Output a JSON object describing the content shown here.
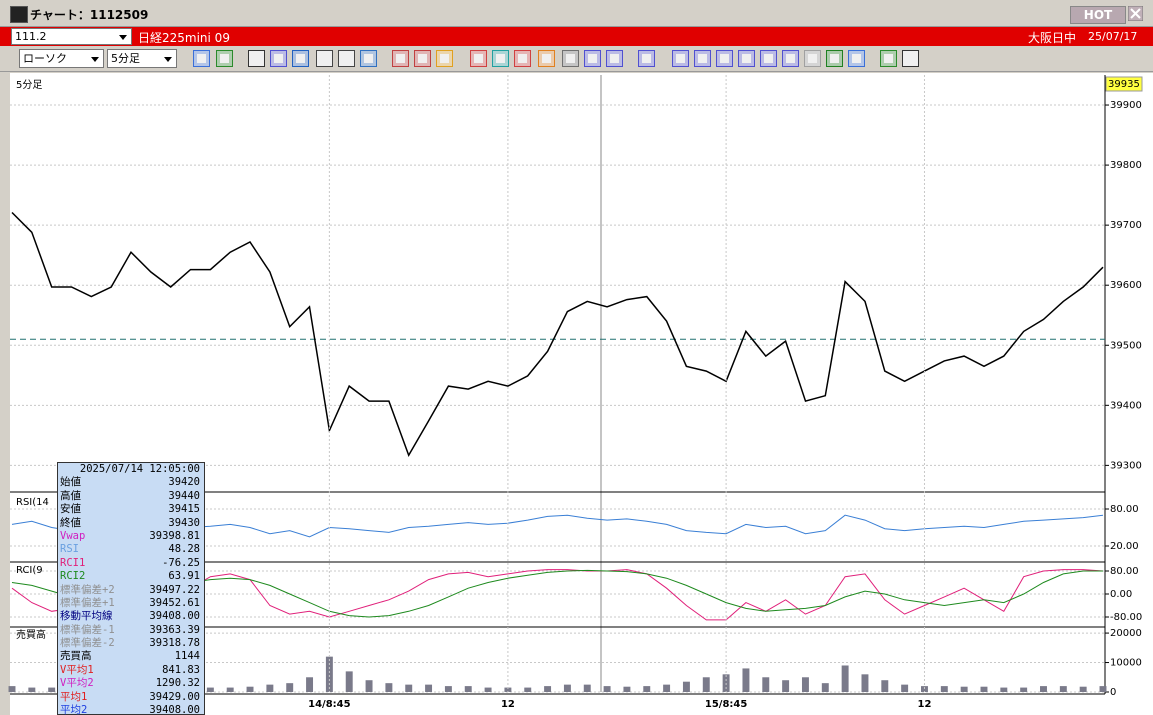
{
  "window": {
    "title": "チャート：1112509",
    "hot": "HOT"
  },
  "header": {
    "code": "111.2",
    "name": "日経225mini 09",
    "market": "大阪日中",
    "date": "25/07/17"
  },
  "toolbar": {
    "chart_type": "ローソク",
    "interval": "5分足"
  },
  "chart_data": [
    {
      "type": "line",
      "title": "5分足",
      "series": [
        {
          "color": "#000000",
          "values": [
            39721,
            39688,
            39597,
            39597,
            39581,
            39597,
            39655,
            39622,
            39597,
            39626,
            39626,
            39655,
            39672,
            39622,
            39531,
            39564,
            39358,
            39432,
            39407,
            39407,
            39317,
            39374,
            39432,
            39427,
            39440,
            39432,
            39449,
            39490,
            39556,
            39573,
            39564,
            39576,
            39581,
            39540,
            39465,
            39457,
            39440,
            39523,
            39482,
            39507,
            39407,
            39416,
            39606,
            39573,
            39457,
            39440,
            39457,
            39474,
            39482,
            39465,
            39482,
            39523,
            39543,
            39573,
            39597,
            39630
          ]
        }
      ],
      "last_price": 39935,
      "reference_line": 39510,
      "ylim": [
        39259,
        39945
      ],
      "yticks": [
        39300,
        39400,
        39500,
        39600,
        39700,
        39800,
        39900
      ]
    },
    {
      "type": "line",
      "title": "RSI(14",
      "series": [
        {
          "color": "#3a7fd5",
          "values": [
            55,
            60,
            50,
            45,
            48,
            52,
            55,
            45,
            48,
            50,
            52,
            55,
            50,
            40,
            45,
            35,
            50,
            48,
            45,
            42,
            50,
            52,
            55,
            58,
            55,
            57,
            62,
            68,
            70,
            65,
            62,
            64,
            60,
            55,
            45,
            42,
            40,
            55,
            50,
            52,
            40,
            45,
            70,
            62,
            48,
            45,
            48,
            50,
            52,
            50,
            55,
            60,
            62,
            64,
            66,
            70
          ]
        }
      ],
      "ylim": [
        -2.7,
        102.7
      ],
      "yticks": [
        {
          "value": 20,
          "label": "20.00"
        },
        {
          "value": 80,
          "label": "80.00"
        }
      ]
    },
    {
      "type": "line",
      "title": "RCI(9",
      "series": [
        {
          "color": "#e0207a",
          "values": [
            20,
            -30,
            -60,
            -50,
            -20,
            30,
            60,
            70,
            40,
            20,
            60,
            70,
            50,
            -40,
            -70,
            -60,
            -80,
            -60,
            -40,
            -20,
            10,
            50,
            70,
            75,
            60,
            70,
            80,
            85,
            85,
            80,
            80,
            85,
            70,
            20,
            -40,
            -90,
            -90,
            -30,
            -60,
            -20,
            -70,
            -40,
            60,
            70,
            -20,
            -70,
            -40,
            -10,
            20,
            -20,
            -60,
            60,
            80,
            85,
            85,
            80
          ]
        },
        {
          "color": "#1e8a1e",
          "values": [
            40,
            30,
            10,
            -10,
            -20,
            -10,
            10,
            30,
            40,
            40,
            50,
            55,
            50,
            30,
            0,
            -30,
            -60,
            -75,
            -80,
            -75,
            -60,
            -40,
            -10,
            20,
            40,
            55,
            65,
            75,
            80,
            82,
            80,
            78,
            70,
            55,
            30,
            0,
            -30,
            -50,
            -60,
            -55,
            -50,
            -40,
            -10,
            10,
            0,
            -20,
            -30,
            -40,
            -30,
            -20,
            -30,
            0,
            40,
            70,
            80,
            80
          ]
        }
      ],
      "ylim": [
        -107.8,
        107.8
      ],
      "yticks": [
        {
          "value": -80,
          "label": "-80.00"
        },
        {
          "value": 0,
          "label": "0.00"
        },
        {
          "value": 80,
          "label": "80.00"
        }
      ]
    },
    {
      "type": "bar",
      "title": "売買高",
      "color": "#7a7a8a",
      "values": [
        2000,
        1500,
        1500,
        1200,
        1200,
        1500,
        1800,
        1500,
        1200,
        1200,
        1500,
        1500,
        1800,
        2500,
        3000,
        5000,
        12000,
        7000,
        4000,
        3000,
        2500,
        2500,
        2000,
        2000,
        1500,
        1500,
        1500,
        2000,
        2500,
        2500,
        2000,
        1800,
        2000,
        2500,
        3500,
        5000,
        6000,
        8000,
        5000,
        4000,
        5000,
        3000,
        9000,
        6000,
        4000,
        2500,
        2000,
        2000,
        1800,
        1800,
        1500,
        1500,
        2000,
        2000,
        1800,
        2000
      ],
      "categories": [
        null,
        null,
        null,
        null,
        null,
        null,
        null,
        null,
        null,
        null,
        null,
        null,
        null,
        null,
        null,
        null,
        "14/8:45",
        null,
        null,
        null,
        null,
        null,
        null,
        null,
        null,
        "12",
        null,
        null,
        null,
        null,
        null,
        null,
        null,
        null,
        null,
        null,
        "15/8:45",
        null,
        null,
        null,
        null,
        null,
        null,
        null,
        null,
        null,
        "12",
        null,
        null,
        null,
        null,
        null,
        null,
        null,
        null,
        null
      ],
      "ylim": [
        0,
        21724
      ],
      "yticks": [
        0,
        10000,
        20000
      ]
    }
  ],
  "info_box": {
    "datetime": "2025/07/14 12:05:00",
    "rows": [
      {
        "label": "始値",
        "value": "39420",
        "color": "#000000"
      },
      {
        "label": "高値",
        "value": "39440",
        "color": "#000000"
      },
      {
        "label": "安値",
        "value": "39415",
        "color": "#000000"
      },
      {
        "label": "終値",
        "value": "39430",
        "color": "#000000"
      },
      {
        "label": "Vwap",
        "value": "39398.81",
        "color": "#d020c0"
      },
      {
        "label": "RSI",
        "value": "48.28",
        "color": "#6aa0e0"
      },
      {
        "label": "RCI1",
        "value": "-76.25",
        "color": "#e0207a"
      },
      {
        "label": "RCI2",
        "value": "63.91",
        "color": "#1e8a1e"
      },
      {
        "label": "標準偏差+2",
        "value": "39497.22",
        "color": "#909090"
      },
      {
        "label": "標準偏差+1",
        "value": "39452.61",
        "color": "#909090"
      },
      {
        "label": "移動平均線",
        "value": "39408.00",
        "color": "#000080"
      },
      {
        "label": "標準偏差-1",
        "value": "39363.39",
        "color": "#909090"
      },
      {
        "label": "標準偏差-2",
        "value": "39318.78",
        "color": "#909090"
      },
      {
        "label": "売買高",
        "value": "1144",
        "color": "#000000"
      },
      {
        "label": "V平均1",
        "value": "841.83",
        "color": "#e02020"
      },
      {
        "label": "V平均2",
        "value": "1290.32",
        "color": "#d020c0"
      },
      {
        "label": "平均1",
        "value": "39429.00",
        "color": "#e02020"
      },
      {
        "label": "平均2",
        "value": "39408.00",
        "color": "#2040e0"
      }
    ]
  }
}
